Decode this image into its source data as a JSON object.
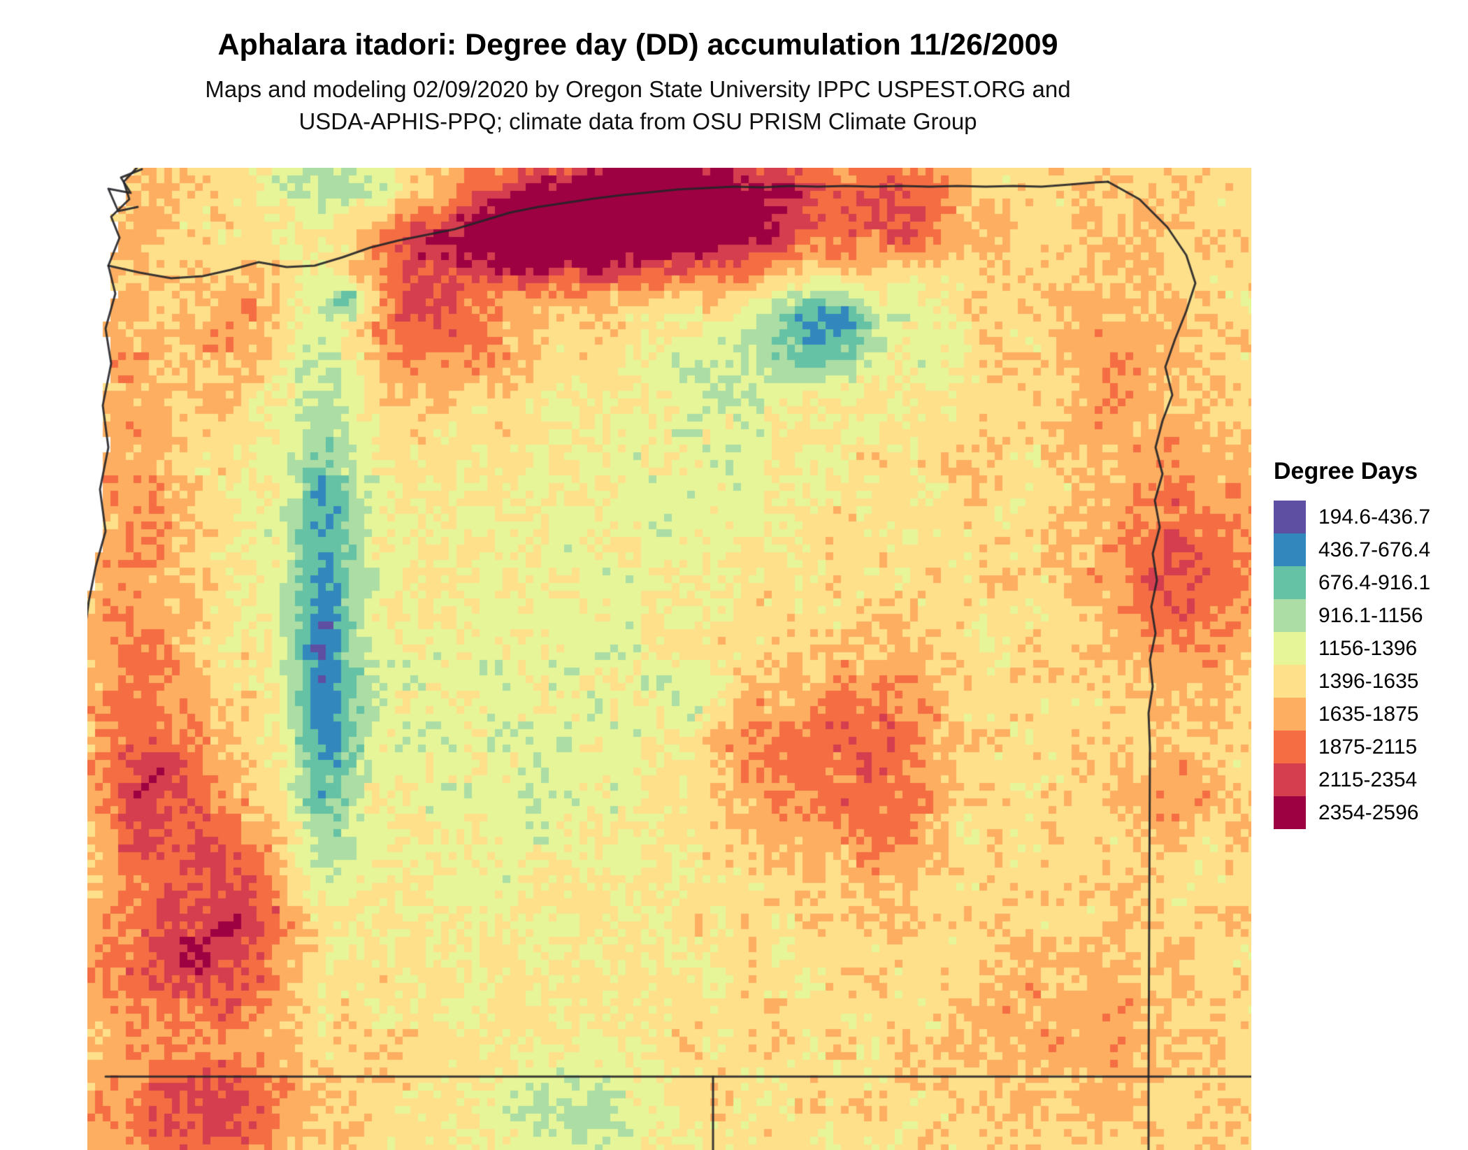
{
  "header": {
    "title": "Aphalara itadori: Degree day (DD) accumulation 11/26/2009",
    "subtitle_line1": "Maps and modeling 02/09/2020 by Oregon State University IPPC USPEST.ORG and",
    "subtitle_line2": "USDA-APHIS-PPQ; climate data from OSU PRISM Climate Group"
  },
  "legend": {
    "title": "Degree Days",
    "items": [
      {
        "label": "194.6-436.7",
        "color": "#5e4fa2"
      },
      {
        "label": "436.7-676.4",
        "color": "#3288bd"
      },
      {
        "label": "676.4-916.1",
        "color": "#66c2a5"
      },
      {
        "label": "916.1-1156",
        "color": "#abdda4"
      },
      {
        "label": "1156-1396",
        "color": "#e6f598"
      },
      {
        "label": "1396-1635",
        "color": "#fee08b"
      },
      {
        "label": "1635-1875",
        "color": "#fdae61"
      },
      {
        "label": "1875-2115",
        "color": "#f46d43"
      },
      {
        "label": "2115-2354",
        "color": "#d53e4f"
      },
      {
        "label": "2354-2596",
        "color": "#9e0142"
      }
    ]
  },
  "chart_data": {
    "type": "heatmap",
    "title": "Aphalara itadori: Degree day (DD) accumulation 11/26/2009",
    "legend_title": "Degree Days",
    "breaks": [
      194.6,
      436.7,
      676.4,
      916.1,
      1156,
      1396,
      1635,
      1875,
      2115,
      2354,
      2596
    ],
    "colors": [
      "#5e4fa2",
      "#3288bd",
      "#66c2a5",
      "#abdda4",
      "#e6f598",
      "#fee08b",
      "#fdae61",
      "#f46d43",
      "#d53e4f",
      "#9e0142"
    ]
  }
}
